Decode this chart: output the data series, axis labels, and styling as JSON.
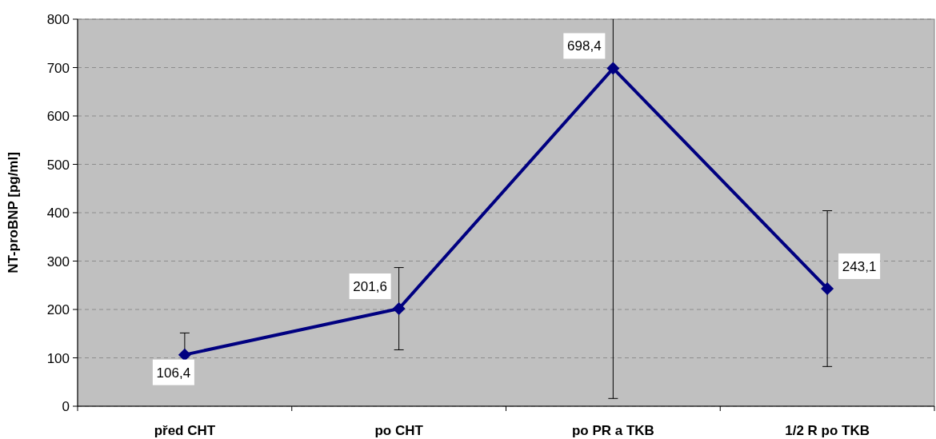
{
  "chart_data": {
    "type": "line",
    "ylabel": "NT-proBNP [pg/ml]",
    "categories": [
      "před CHT",
      "po CHT",
      "po PR a TKB",
      "1/2 R po TKB"
    ],
    "series": [
      {
        "color": "#000080",
        "values": [
          106.4,
          201.6,
          698.4,
          243.1
        ],
        "errors": [
          45,
          85,
          [
            16,
            800
          ],
          161
        ],
        "value_labels": [
          "106,4",
          "201,6",
          "698,4",
          "243,1"
        ]
      }
    ],
    "ylim": [
      0,
      800
    ],
    "yticks": [
      0,
      100,
      200,
      300,
      400,
      500,
      600,
      700,
      800
    ],
    "grid": "y",
    "marker": "diamond",
    "line_style": "solid"
  }
}
